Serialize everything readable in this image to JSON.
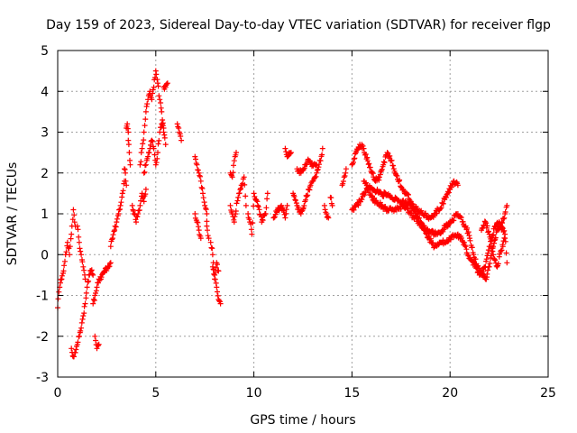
{
  "chart_data": {
    "type": "scatter",
    "title": "Day 159 of 2023, Sidereal Day-to-day VTEC variation (SDTVAR) for receiver flgp",
    "xlabel": "GPS time / hours",
    "ylabel": "SDTVAR / TECUs",
    "xlim": [
      0,
      25
    ],
    "ylim": [
      -3,
      5
    ],
    "xticks": [
      0,
      5,
      10,
      15,
      20,
      25
    ],
    "yticks": [
      -3,
      -2,
      -1,
      0,
      1,
      2,
      3,
      4,
      5
    ],
    "grid": true,
    "marker": "+",
    "color": "#ff0000",
    "series": [
      {
        "name": "SDTVAR",
        "tracks": [
          [
            [
              0.0,
              -1.3
            ],
            [
              0.1,
              -0.8
            ],
            [
              0.2,
              -0.6
            ],
            [
              0.3,
              -0.4
            ],
            [
              0.4,
              0.0
            ],
            [
              0.5,
              0.3
            ],
            [
              0.6,
              0.0
            ],
            [
              0.7,
              0.5
            ],
            [
              0.8,
              1.1
            ],
            [
              0.9,
              0.7
            ]
          ],
          [
            [
              0.7,
              -2.3
            ],
            [
              0.8,
              -2.5
            ],
            [
              0.9,
              -2.4
            ],
            [
              1.0,
              -2.2
            ],
            [
              1.1,
              -2.0
            ],
            [
              1.2,
              -1.8
            ],
            [
              1.3,
              -1.5
            ],
            [
              1.4,
              -1.2
            ],
            [
              1.5,
              -0.8
            ],
            [
              1.6,
              -0.5
            ],
            [
              1.7,
              -0.4
            ],
            [
              1.8,
              -0.5
            ]
          ],
          [
            [
              1.0,
              0.7
            ],
            [
              1.1,
              0.3
            ],
            [
              1.2,
              0.0
            ],
            [
              1.3,
              -0.3
            ],
            [
              1.4,
              -0.6
            ]
          ],
          [
            [
              1.8,
              -1.2
            ],
            [
              1.9,
              -1.0
            ],
            [
              2.0,
              -0.8
            ],
            [
              2.1,
              -0.6
            ],
            [
              2.2,
              -0.6
            ],
            [
              2.4,
              -0.4
            ],
            [
              2.6,
              -0.3
            ],
            [
              2.7,
              -0.2
            ]
          ],
          [
            [
              1.9,
              -2.0
            ],
            [
              2.0,
              -2.3
            ],
            [
              2.1,
              -2.2
            ]
          ],
          [
            [
              2.7,
              0.2
            ],
            [
              2.8,
              0.4
            ],
            [
              2.9,
              0.6
            ],
            [
              3.0,
              0.8
            ],
            [
              3.1,
              1.0
            ],
            [
              3.2,
              1.2
            ],
            [
              3.3,
              1.5
            ],
            [
              3.4,
              1.8
            ]
          ],
          [
            [
              3.4,
              2.1
            ],
            [
              3.45,
              2.0
            ],
            [
              3.5,
              1.7
            ]
          ],
          [
            [
              3.5,
              3.1
            ],
            [
              3.55,
              3.2
            ],
            [
              3.6,
              3.0
            ]
          ],
          [
            [
              3.6,
              2.8
            ],
            [
              3.65,
              2.5
            ],
            [
              3.7,
              2.2
            ]
          ],
          [
            [
              3.8,
              1.2
            ],
            [
              3.9,
              1.0
            ],
            [
              4.0,
              0.8
            ],
            [
              4.1,
              1.0
            ],
            [
              4.2,
              1.2
            ],
            [
              4.3,
              1.5
            ],
            [
              4.4,
              1.3
            ],
            [
              4.5,
              1.6
            ]
          ],
          [
            [
              4.2,
              2.2
            ],
            [
              4.3,
              2.6
            ],
            [
              4.4,
              3.0
            ],
            [
              4.5,
              3.5
            ],
            [
              4.6,
              3.8
            ],
            [
              4.7,
              4.0
            ],
            [
              4.8,
              3.8
            ],
            [
              4.9,
              4.1
            ],
            [
              5.0,
              4.5
            ],
            [
              5.1,
              4.2
            ],
            [
              5.2,
              3.8
            ],
            [
              5.3,
              3.5
            ],
            [
              5.4,
              3.0
            ],
            [
              5.5,
              2.7
            ]
          ],
          [
            [
              4.4,
              2.0
            ],
            [
              4.5,
              2.2
            ],
            [
              4.6,
              2.4
            ],
            [
              4.7,
              2.6
            ],
            [
              4.8,
              2.8
            ],
            [
              4.9,
              2.6
            ],
            [
              5.0,
              2.2
            ],
            [
              5.1,
              2.5
            ],
            [
              5.2,
              3.0
            ],
            [
              5.3,
              3.2
            ],
            [
              5.4,
              3.1
            ]
          ],
          [
            [
              5.4,
              4.1
            ],
            [
              5.5,
              4.1
            ],
            [
              5.6,
              4.2
            ]
          ],
          [
            [
              6.1,
              3.2
            ],
            [
              6.2,
              3.0
            ],
            [
              6.3,
              2.8
            ]
          ],
          [
            [
              7.0,
              2.4
            ],
            [
              7.1,
              2.2
            ],
            [
              7.2,
              2.0
            ],
            [
              7.3,
              1.8
            ],
            [
              7.4,
              1.5
            ],
            [
              7.5,
              1.2
            ],
            [
              7.6,
              1.0
            ],
            [
              7.6,
              0.7
            ],
            [
              7.7,
              0.4
            ]
          ],
          [
            [
              7.0,
              1.0
            ],
            [
              7.1,
              0.8
            ],
            [
              7.2,
              0.6
            ],
            [
              7.3,
              0.4
            ]
          ],
          [
            [
              7.8,
              0.3
            ],
            [
              7.9,
              0.0
            ],
            [
              8.0,
              -0.5
            ],
            [
              8.1,
              -0.8
            ],
            [
              8.2,
              -1.1
            ],
            [
              8.3,
              -1.2
            ]
          ],
          [
            [
              7.9,
              -0.3
            ],
            [
              8.0,
              -0.6
            ],
            [
              8.1,
              -0.2
            ],
            [
              8.2,
              -0.4
            ]
          ],
          [
            [
              8.8,
              2.0
            ],
            [
              8.9,
              1.9
            ],
            [
              9.0,
              2.3
            ],
            [
              9.1,
              2.5
            ]
          ],
          [
            [
              8.8,
              1.2
            ],
            [
              8.9,
              1.0
            ],
            [
              9.0,
              0.8
            ],
            [
              9.2,
              1.4
            ],
            [
              9.4,
              1.7
            ],
            [
              9.5,
              1.9
            ],
            [
              9.6,
              1.2
            ]
          ],
          [
            [
              9.7,
              1.0
            ],
            [
              9.8,
              0.8
            ],
            [
              9.9,
              0.5
            ],
            [
              10.0,
              1.5
            ],
            [
              10.2,
              1.2
            ],
            [
              10.4,
              0.8
            ],
            [
              10.6,
              1.0
            ],
            [
              10.7,
              1.5
            ]
          ],
          [
            [
              11.0,
              0.9
            ],
            [
              11.2,
              1.1
            ],
            [
              11.4,
              1.2
            ],
            [
              11.6,
              0.9
            ],
            [
              11.7,
              1.2
            ]
          ],
          [
            [
              11.6,
              2.6
            ],
            [
              11.7,
              2.4
            ],
            [
              11.8,
              2.5
            ],
            [
              11.9,
              2.5
            ]
          ],
          [
            [
              12.0,
              1.5
            ],
            [
              12.2,
              1.2
            ],
            [
              12.4,
              1.0
            ],
            [
              12.6,
              1.3
            ],
            [
              12.8,
              1.6
            ],
            [
              13.0,
              1.8
            ],
            [
              13.2,
              2.0
            ],
            [
              13.4,
              2.3
            ],
            [
              13.5,
              2.6
            ]
          ],
          [
            [
              12.2,
              2.1
            ],
            [
              12.4,
              2.0
            ],
            [
              12.6,
              2.2
            ],
            [
              12.8,
              2.3
            ],
            [
              13.0,
              2.2
            ],
            [
              13.2,
              2.2
            ]
          ],
          [
            [
              13.6,
              1.2
            ],
            [
              13.7,
              1.0
            ],
            [
              13.8,
              0.9
            ]
          ],
          [
            [
              13.9,
              1.4
            ],
            [
              14.0,
              1.2
            ]
          ],
          [
            [
              14.5,
              1.7
            ],
            [
              14.6,
              1.9
            ],
            [
              14.7,
              2.1
            ]
          ],
          [
            [
              15.0,
              2.2
            ],
            [
              15.2,
              2.5
            ],
            [
              15.4,
              2.7
            ],
            [
              15.6,
              2.6
            ],
            [
              15.8,
              2.3
            ],
            [
              16.0,
              2.0
            ],
            [
              16.2,
              1.8
            ],
            [
              16.4,
              1.9
            ],
            [
              16.6,
              2.2
            ],
            [
              16.8,
              2.5
            ],
            [
              17.0,
              2.3
            ],
            [
              17.2,
              2.0
            ],
            [
              17.4,
              1.8
            ],
            [
              17.6,
              1.6
            ],
            [
              17.8,
              1.5
            ],
            [
              18.0,
              1.3
            ],
            [
              18.3,
              1.1
            ],
            [
              18.6,
              1.0
            ],
            [
              19.0,
              0.9
            ],
            [
              19.4,
              1.1
            ],
            [
              19.8,
              1.4
            ],
            [
              20.0,
              1.6
            ],
            [
              20.2,
              1.8
            ],
            [
              20.4,
              1.7
            ]
          ],
          [
            [
              15.0,
              1.1
            ],
            [
              15.2,
              1.2
            ],
            [
              15.4,
              1.3
            ],
            [
              15.6,
              1.5
            ],
            [
              15.8,
              1.6
            ],
            [
              16.0,
              1.4
            ],
            [
              16.2,
              1.3
            ],
            [
              16.5,
              1.2
            ],
            [
              16.8,
              1.1
            ],
            [
              17.2,
              1.1
            ],
            [
              17.6,
              1.2
            ],
            [
              18.0,
              1.0
            ],
            [
              18.4,
              0.8
            ],
            [
              18.8,
              0.6
            ],
            [
              19.2,
              0.5
            ],
            [
              19.6,
              0.6
            ],
            [
              20.0,
              0.8
            ],
            [
              20.4,
              1.0
            ],
            [
              20.8,
              0.7
            ],
            [
              21.0,
              0.4
            ],
            [
              21.2,
              0.0
            ],
            [
              21.4,
              -0.3
            ],
            [
              21.6,
              -0.5
            ],
            [
              21.8,
              -0.6
            ],
            [
              22.0,
              -0.3
            ],
            [
              22.2,
              0.2
            ],
            [
              22.4,
              0.6
            ],
            [
              22.6,
              0.7
            ],
            [
              22.8,
              1.0
            ],
            [
              22.9,
              1.2
            ]
          ],
          [
            [
              15.6,
              1.8
            ],
            [
              16.0,
              1.6
            ],
            [
              16.5,
              1.5
            ],
            [
              17.0,
              1.4
            ],
            [
              17.5,
              1.3
            ],
            [
              18.0,
              1.2
            ],
            [
              18.5,
              0.8
            ],
            [
              18.8,
              0.5
            ],
            [
              19.2,
              0.2
            ],
            [
              19.6,
              0.3
            ],
            [
              20.0,
              0.4
            ],
            [
              20.4,
              0.5
            ],
            [
              20.8,
              0.2
            ],
            [
              21.0,
              -0.1
            ],
            [
              21.3,
              -0.3
            ],
            [
              21.5,
              -0.5
            ],
            [
              21.8,
              -0.3
            ],
            [
              22.0,
              0.2
            ],
            [
              22.3,
              0.7
            ],
            [
              22.5,
              0.8
            ],
            [
              22.8,
              0.5
            ],
            [
              22.9,
              -0.2
            ]
          ],
          [
            [
              21.6,
              0.6
            ],
            [
              21.8,
              0.8
            ],
            [
              22.0,
              0.5
            ],
            [
              22.2,
              0.0
            ],
            [
              22.4,
              -0.3
            ],
            [
              22.6,
              0.1
            ],
            [
              22.8,
              0.4
            ]
          ]
        ]
      }
    ]
  }
}
